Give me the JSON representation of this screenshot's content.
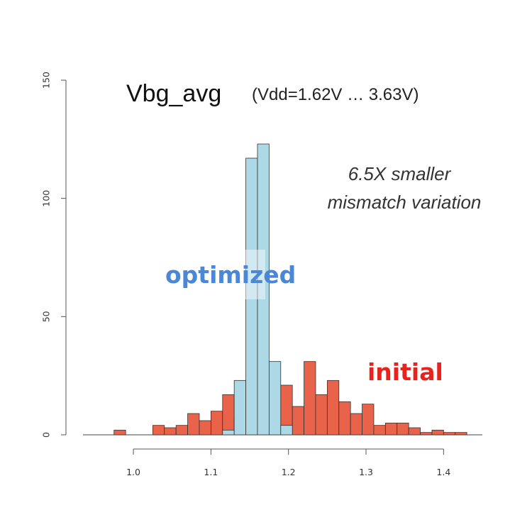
{
  "chart_data": {
    "type": "bar",
    "title": "Vbg_avg",
    "subtitle": "(Vdd=1.62V … 3.63V)",
    "annotation_lines": [
      "6.5X smaller",
      "mismatch variation"
    ],
    "series_labels": {
      "optimized": "optimized",
      "initial": "initial"
    },
    "xlim": [
      0.935,
      1.45
    ],
    "ylim": [
      0,
      150
    ],
    "x_ticks": [
      1.0,
      1.1,
      1.2,
      1.3,
      1.4
    ],
    "x_tick_labels": [
      "1.0",
      "1.1",
      "1.2",
      "1.3",
      "1.4"
    ],
    "y_ticks": [
      0,
      50,
      100,
      150
    ],
    "y_tick_labels": [
      "0",
      "50",
      "100",
      "150"
    ],
    "bin_width": 0.015,
    "series": [
      {
        "name": "initial",
        "color": "#e8634a",
        "bins": [
          {
            "x0": 0.975,
            "count": 2
          },
          {
            "x0": 0.99,
            "count": 0
          },
          {
            "x0": 1.005,
            "count": 0
          },
          {
            "x0": 1.025,
            "count": 4
          },
          {
            "x0": 1.04,
            "count": 3
          },
          {
            "x0": 1.055,
            "count": 4
          },
          {
            "x0": 1.07,
            "count": 9
          },
          {
            "x0": 1.085,
            "count": 6
          },
          {
            "x0": 1.1,
            "count": 10
          },
          {
            "x0": 1.115,
            "count": 17
          },
          {
            "x0": 1.13,
            "count": 7
          },
          {
            "x0": 1.145,
            "count": 12
          },
          {
            "x0": 1.16,
            "count": 10
          },
          {
            "x0": 1.175,
            "count": 14
          },
          {
            "x0": 1.19,
            "count": 21
          },
          {
            "x0": 1.205,
            "count": 12
          },
          {
            "x0": 1.22,
            "count": 31
          },
          {
            "x0": 1.235,
            "count": 17
          },
          {
            "x0": 1.25,
            "count": 23
          },
          {
            "x0": 1.265,
            "count": 14
          },
          {
            "x0": 1.28,
            "count": 9
          },
          {
            "x0": 1.295,
            "count": 13
          },
          {
            "x0": 1.31,
            "count": 4
          },
          {
            "x0": 1.325,
            "count": 5
          },
          {
            "x0": 1.34,
            "count": 5
          },
          {
            "x0": 1.355,
            "count": 3
          },
          {
            "x0": 1.37,
            "count": 1
          },
          {
            "x0": 1.385,
            "count": 2
          },
          {
            "x0": 1.4,
            "count": 1
          },
          {
            "x0": 1.415,
            "count": 1
          }
        ]
      },
      {
        "name": "optimized",
        "color": "#add8e6",
        "bins": [
          {
            "x0": 1.115,
            "count": 2
          },
          {
            "x0": 1.13,
            "count": 23
          },
          {
            "x0": 1.145,
            "count": 117
          },
          {
            "x0": 1.16,
            "count": 123
          },
          {
            "x0": 1.175,
            "count": 31
          },
          {
            "x0": 1.19,
            "count": 4
          }
        ]
      }
    ]
  }
}
